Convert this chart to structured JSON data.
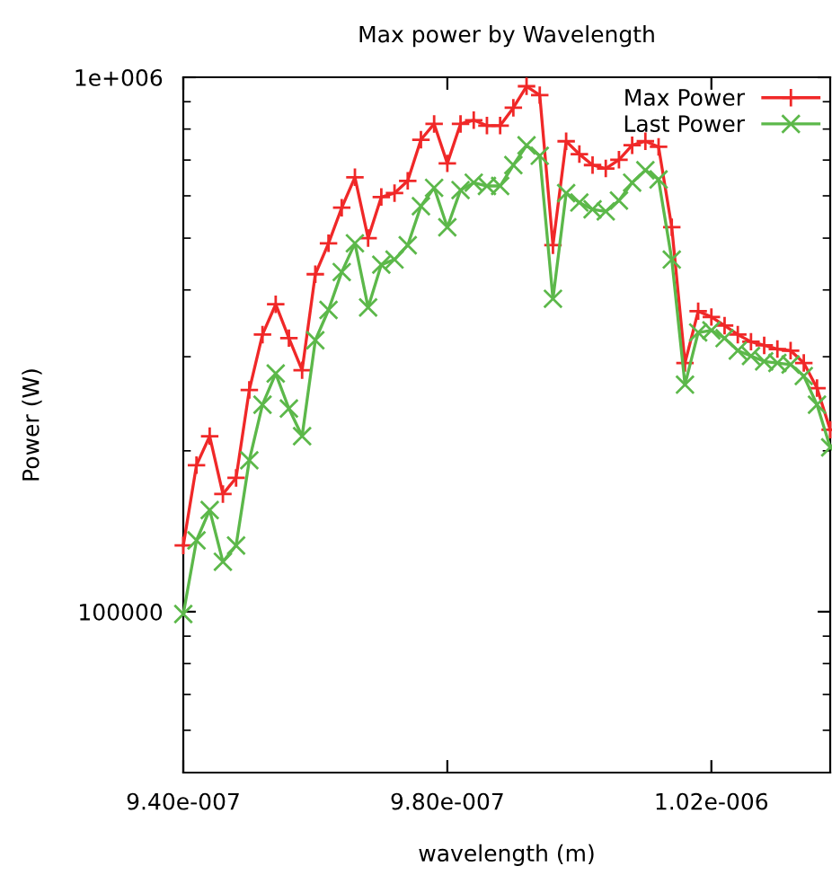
{
  "chart_data": {
    "type": "line",
    "title": "Max power by Wavelength",
    "xlabel": "wavelength (m)",
    "ylabel": "Power (W)",
    "x": [
      9.4e-07,
      9.42e-07,
      9.44e-07,
      9.46e-07,
      9.48e-07,
      9.5e-07,
      9.52e-07,
      9.54e-07,
      9.56e-07,
      9.58e-07,
      9.6e-07,
      9.62e-07,
      9.64e-07,
      9.66e-07,
      9.68e-07,
      9.7e-07,
      9.72e-07,
      9.74e-07,
      9.76e-07,
      9.78e-07,
      9.8e-07,
      9.82e-07,
      9.84e-07,
      9.86e-07,
      9.88e-07,
      9.9e-07,
      9.92e-07,
      9.94e-07,
      9.96e-07,
      9.98e-07,
      1e-06,
      1.002e-06,
      1.004e-06,
      1.006e-06,
      1.008e-06,
      1.01e-06,
      1.012e-06,
      1.014e-06,
      1.016e-06,
      1.018e-06,
      1.02e-06,
      1.022e-06,
      1.024e-06,
      1.026e-06,
      1.028e-06,
      1.03e-06,
      1.032e-06,
      1.034e-06,
      1.036e-06,
      1.038e-06
    ],
    "series": [
      {
        "name": "Max Power",
        "color": "#f02828",
        "marker": "plus",
        "values": [
          133000,
          188000,
          213000,
          166000,
          178000,
          260000,
          330000,
          376000,
          325000,
          283000,
          428000,
          489000,
          570000,
          650000,
          500000,
          597000,
          607000,
          640000,
          764000,
          818000,
          690000,
          818000,
          831000,
          812000,
          812000,
          877000,
          962000,
          926000,
          485000,
          759000,
          718000,
          685000,
          675000,
          701000,
          746000,
          759000,
          741000,
          524000,
          292000,
          365000,
          356000,
          343000,
          330000,
          320000,
          315000,
          310000,
          308000,
          292000,
          262000,
          219000
        ]
      },
      {
        "name": "Last Power",
        "color": "#5cb84a",
        "marker": "cross",
        "values": [
          99000,
          136000,
          155000,
          124000,
          133000,
          192000,
          244000,
          279000,
          240000,
          213000,
          322000,
          367000,
          432000,
          489000,
          371000,
          446000,
          456000,
          485000,
          574000,
          621000,
          524000,
          615000,
          635000,
          626000,
          626000,
          685000,
          746000,
          713000,
          385000,
          607000,
          583000,
          566000,
          561000,
          588000,
          635000,
          670000,
          644000,
          456000,
          266000,
          333000,
          336000,
          325000,
          308000,
          301000,
          294000,
          292000,
          290000,
          276000,
          244000,
          203000
        ]
      }
    ],
    "log": "y",
    "xlim": [
      9.4e-07,
      1.038e-06
    ],
    "ylim": [
      50000,
      1000000
    ],
    "xticks": [
      {
        "value": 9.4e-07,
        "label": "9.40e-007"
      },
      {
        "value": 9.8e-07,
        "label": "9.80e-007"
      },
      {
        "value": 1.02e-06,
        "label": "1.02e-006"
      }
    ],
    "yticks": [
      {
        "value": 100000,
        "label": "100000"
      },
      {
        "value": 1000000,
        "label": "1e+006"
      }
    ],
    "legend": "top right",
    "grid": false
  }
}
